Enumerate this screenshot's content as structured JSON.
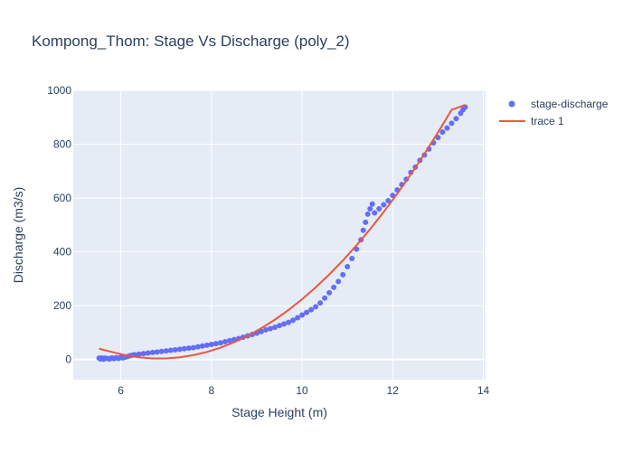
{
  "chart_data": {
    "type": "scatter",
    "title": "Kompong_Thom: Stage Vs Discharge (poly_2)",
    "xlabel": "Stage Height (m)",
    "ylabel": "Discharge (m3/s)",
    "xlim": [
      4.95,
      14.05
    ],
    "ylim": [
      -75,
      1000
    ],
    "xticks": [
      6,
      8,
      10,
      12,
      14
    ],
    "yticks": [
      0,
      200,
      400,
      600,
      800,
      1000
    ],
    "grid": true,
    "legend_position": "top-right",
    "series": [
      {
        "name": "stage-discharge",
        "mode": "markers",
        "color": "#636efa",
        "points": [
          [
            5.52,
            5
          ],
          [
            5.55,
            2
          ],
          [
            5.58,
            6
          ],
          [
            5.6,
            3
          ],
          [
            5.62,
            1
          ],
          [
            5.65,
            5
          ],
          [
            5.7,
            4
          ],
          [
            5.75,
            2
          ],
          [
            5.8,
            6
          ],
          [
            5.85,
            3
          ],
          [
            5.9,
            7
          ],
          [
            5.95,
            4
          ],
          [
            6.0,
            8
          ],
          [
            6.05,
            6
          ],
          [
            6.1,
            9
          ],
          [
            6.15,
            11
          ],
          [
            6.2,
            14
          ],
          [
            6.25,
            16
          ],
          [
            6.3,
            18
          ],
          [
            6.4,
            20
          ],
          [
            6.5,
            22
          ],
          [
            6.6,
            24
          ],
          [
            6.7,
            26
          ],
          [
            6.8,
            28
          ],
          [
            6.9,
            30
          ],
          [
            7.0,
            32
          ],
          [
            7.1,
            34
          ],
          [
            7.2,
            36
          ],
          [
            7.3,
            38
          ],
          [
            7.4,
            40
          ],
          [
            7.5,
            42
          ],
          [
            7.6,
            44
          ],
          [
            7.7,
            47
          ],
          [
            7.8,
            50
          ],
          [
            7.9,
            53
          ],
          [
            8.0,
            56
          ],
          [
            8.1,
            59
          ],
          [
            8.2,
            62
          ],
          [
            8.3,
            66
          ],
          [
            8.4,
            70
          ],
          [
            8.5,
            74
          ],
          [
            8.6,
            78
          ],
          [
            8.7,
            83
          ],
          [
            8.8,
            88
          ],
          [
            8.9,
            93
          ],
          [
            9.0,
            98
          ],
          [
            9.1,
            104
          ],
          [
            9.2,
            110
          ],
          [
            9.3,
            115
          ],
          [
            9.4,
            120
          ],
          [
            9.5,
            126
          ],
          [
            9.6,
            132
          ],
          [
            9.7,
            138
          ],
          [
            9.8,
            146
          ],
          [
            9.9,
            155
          ],
          [
            10.0,
            165
          ],
          [
            10.1,
            175
          ],
          [
            10.2,
            185
          ],
          [
            10.3,
            196
          ],
          [
            10.4,
            210
          ],
          [
            10.5,
            228
          ],
          [
            10.6,
            248
          ],
          [
            10.7,
            268
          ],
          [
            10.8,
            290
          ],
          [
            10.9,
            315
          ],
          [
            11.0,
            345
          ],
          [
            11.1,
            375
          ],
          [
            11.2,
            410
          ],
          [
            11.3,
            445
          ],
          [
            11.35,
            480
          ],
          [
            11.4,
            510
          ],
          [
            11.45,
            540
          ],
          [
            11.5,
            560
          ],
          [
            11.55,
            578
          ],
          [
            11.6,
            545
          ],
          [
            11.7,
            560
          ],
          [
            11.8,
            575
          ],
          [
            11.9,
            590
          ],
          [
            12.0,
            610
          ],
          [
            12.1,
            630
          ],
          [
            12.2,
            650
          ],
          [
            12.3,
            670
          ],
          [
            12.4,
            695
          ],
          [
            12.5,
            715
          ],
          [
            12.6,
            740
          ],
          [
            12.7,
            760
          ],
          [
            12.8,
            782
          ],
          [
            12.9,
            805
          ],
          [
            13.0,
            825
          ],
          [
            13.1,
            845
          ],
          [
            13.2,
            860
          ],
          [
            13.3,
            878
          ],
          [
            13.4,
            895
          ],
          [
            13.5,
            915
          ],
          [
            13.55,
            928
          ],
          [
            13.6,
            938
          ]
        ]
      },
      {
        "name": "trace 1",
        "mode": "lines",
        "color": "#ef553b",
        "points": [
          [
            5.52,
            40
          ],
          [
            5.8,
            28
          ],
          [
            6.1,
            16
          ],
          [
            6.4,
            8
          ],
          [
            6.7,
            4
          ],
          [
            7.0,
            4
          ],
          [
            7.3,
            8
          ],
          [
            7.6,
            16
          ],
          [
            7.9,
            28
          ],
          [
            8.2,
            44
          ],
          [
            8.5,
            64
          ],
          [
            8.8,
            88
          ],
          [
            9.1,
            116
          ],
          [
            9.4,
            148
          ],
          [
            9.7,
            184
          ],
          [
            10.0,
            224
          ],
          [
            10.3,
            268
          ],
          [
            10.6,
            316
          ],
          [
            10.9,
            368
          ],
          [
            11.2,
            424
          ],
          [
            11.5,
            484
          ],
          [
            11.8,
            548
          ],
          [
            12.1,
            616
          ],
          [
            12.4,
            688
          ],
          [
            12.7,
            764
          ],
          [
            13.0,
            844
          ],
          [
            13.3,
            928
          ],
          [
            13.6,
            946
          ]
        ]
      }
    ]
  }
}
